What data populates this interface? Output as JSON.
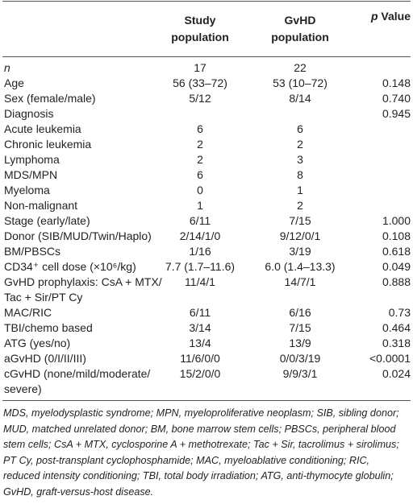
{
  "table": {
    "header": [
      [
        "Study",
        "population"
      ],
      [
        "GvHD",
        "population"
      ],
      {
        "italic": "p",
        "text": "Value"
      }
    ],
    "rows": [
      [
        [
          "n"
        ],
        "17",
        "22",
        null
      ],
      [
        [
          "Age"
        ],
        "56 (33–72)",
        "53 (10–72)",
        "0.148"
      ],
      [
        [
          "Sex (female/male)"
        ],
        "5/12",
        "8/14",
        "0.740"
      ],
      [
        [
          "Diagnosis"
        ],
        null,
        null,
        "0.945"
      ],
      [
        [
          "Acute leukemia"
        ],
        "6",
        "6",
        null
      ],
      [
        [
          "Chronic leukemia"
        ],
        "2",
        "2",
        null
      ],
      [
        [
          "Lymphoma"
        ],
        "2",
        "3",
        null
      ],
      [
        [
          "MDS/MPN"
        ],
        "6",
        "8",
        null
      ],
      [
        [
          "Myeloma"
        ],
        "0",
        "1",
        null
      ],
      [
        [
          "Non-malignant"
        ],
        "1",
        "2",
        null
      ],
      [
        [
          "Stage (early/late)"
        ],
        "6/11",
        "7/15",
        "1.000"
      ],
      [
        [
          "Donor (SIB/MUD/Twin/Haplo)"
        ],
        "2/14/1/0",
        "9/12/0/1",
        "0.108"
      ],
      [
        [
          "BM/PBSCs"
        ],
        "1/16",
        "3/19",
        "0.618"
      ],
      [
        [
          "CD34⁺ cell dose (×10⁶/kg)"
        ],
        "7.7 (1.7–11.6)",
        "6.0 (1.4–13.3)",
        "0.049"
      ],
      [
        [
          "GvHD prophylaxis: CsA + MTX/",
          "Tac + Sir/PT Cy"
        ],
        "11/4/1",
        "14/7/1",
        "0.888"
      ],
      [
        [
          "MAC/RIC"
        ],
        "6/11",
        "6/16",
        "0.73"
      ],
      [
        [
          "TBI/chemo based"
        ],
        "3/14",
        "7/15",
        "0.464"
      ],
      [
        [
          "ATG (yes/no)"
        ],
        "13/4",
        "13/9",
        "0.318"
      ],
      [
        [
          "aGvHD (0/I/II/III)"
        ],
        "11/6/0/0",
        "0/0/3/19",
        "<0.0001"
      ],
      [
        [
          "cGvHD (none/mild/moderate/",
          "severe)"
        ],
        "15/2/0/0",
        "9/9/3/1",
        "0.024"
      ]
    ]
  },
  "footnote": "MDS, myelodysplastic syndrome; MPN, myeloproliferative neoplasm; SIB, sibling donor; MUD, matched unrelated donor; BM, bone marrow stem cells; PBSCs, peripheral blood stem cells; CsA + MTX, cyclosporine A + methotrexate; Tac + Sir, tacrolimus + sirolimus; PT Cy, post-transplant cyclophosphamide; MAC, myeloablative conditioning; RIC, reduced intensity conditioning; TBI, total body irradiation; ATG, anti-thymocyte globulin; GvHD, graft-versus-host disease."
}
